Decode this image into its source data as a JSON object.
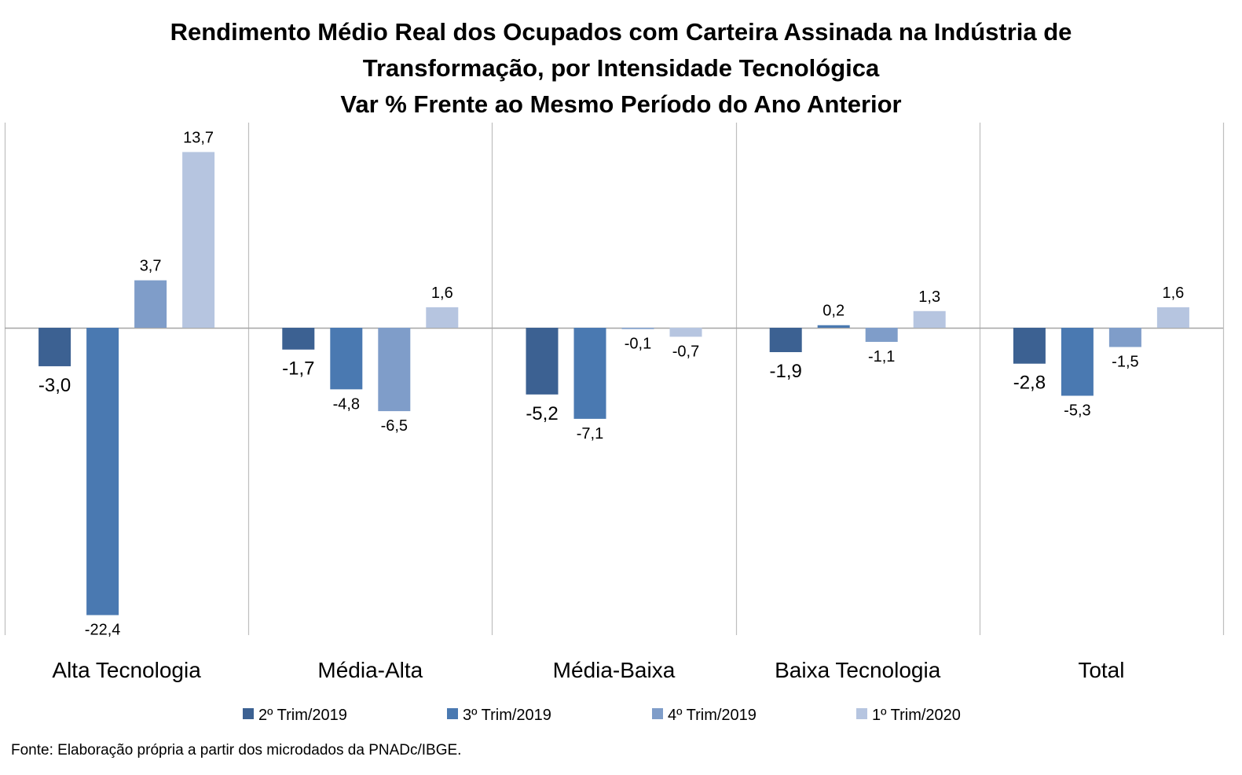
{
  "chart_data": {
    "type": "bar",
    "title": [
      "Rendimento Médio Real dos Ocupados com Carteira Assinada na Indústria de",
      "Transformação, por Intensidade Tecnológica",
      "Var % Frente ao Mesmo Período do Ano Anterior"
    ],
    "categories": [
      "Alta Tecnologia",
      "Média-Alta",
      "Média-Baixa",
      "Baixa Tecnologia",
      "Total"
    ],
    "series": [
      {
        "name": "2º Trim/2019",
        "color": "#3c6192",
        "values": [
          -3.0,
          -1.7,
          -5.2,
          -1.9,
          -2.8
        ],
        "labels": [
          "-3,0",
          "-1,7",
          "-5,2",
          "-1,9",
          "-2,8"
        ]
      },
      {
        "name": "3º Trim/2019",
        "color": "#4a79b1",
        "values": [
          -22.4,
          -4.8,
          -7.1,
          0.2,
          -5.3
        ],
        "labels": [
          "-22,4",
          "-4,8",
          "-7,1",
          "0,2",
          "-5,3"
        ]
      },
      {
        "name": "4º Trim/2019",
        "color": "#7f9dc9",
        "values": [
          3.7,
          -6.5,
          -0.1,
          -1.1,
          -1.5
        ],
        "labels": [
          "3,7",
          "-6,5",
          "-0,1",
          "-1,1",
          "-1,5"
        ]
      },
      {
        "name": "1º Trim/2020",
        "color": "#b6c5e0",
        "values": [
          13.7,
          1.6,
          -0.7,
          1.3,
          1.6
        ],
        "labels": [
          "13,7",
          "1,6",
          "-0,7",
          "1,3",
          "1,6"
        ]
      }
    ],
    "ylim": [
      -24,
      16
    ],
    "legend": "bottom",
    "grid": false,
    "category_separators": true,
    "source": "Fonte: Elaboração própria a partir dos microdados da PNADc/IBGE."
  }
}
